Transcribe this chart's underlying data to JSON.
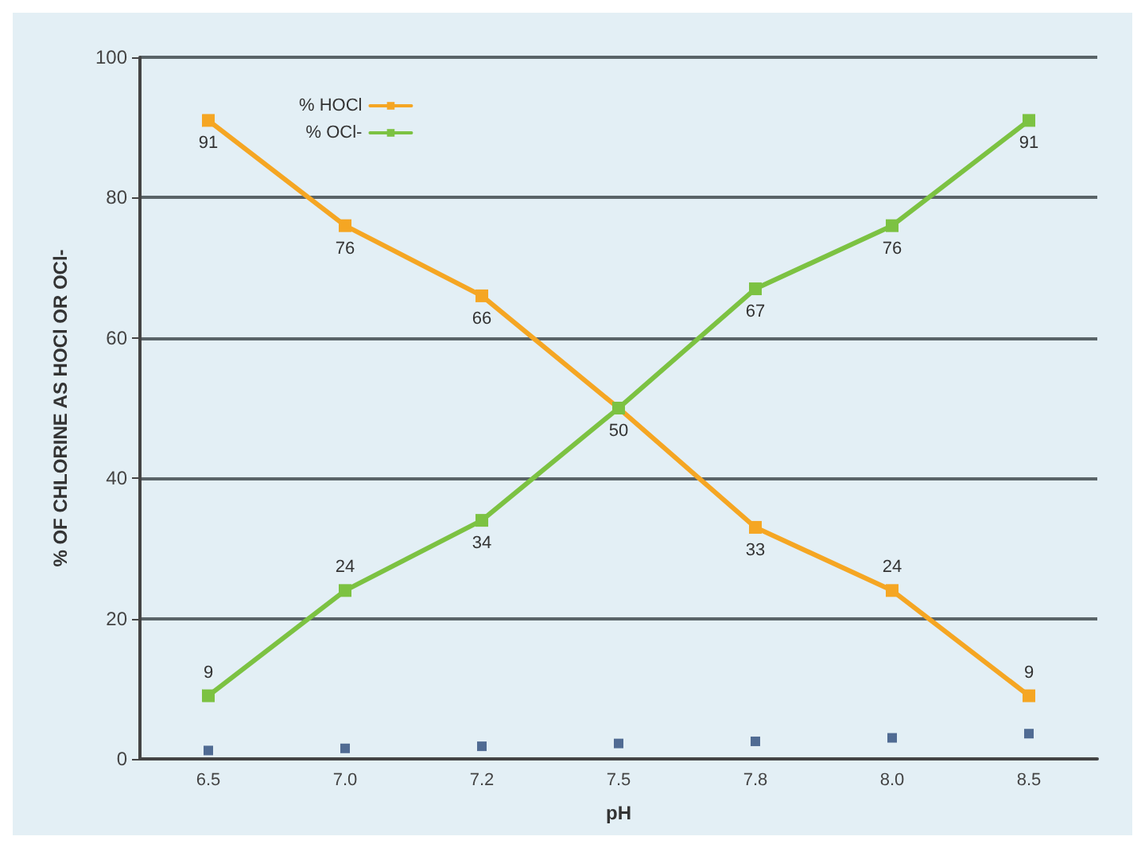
{
  "chart_data": {
    "type": "line",
    "xlabel": "pH",
    "ylabel": "% OF CHLORINE AS HOCl OR OCl-",
    "categories": [
      "6.5",
      "7.0",
      "7.2",
      "7.5",
      "7.8",
      "8.0",
      "8.5"
    ],
    "series": [
      {
        "name": "% HOCl",
        "color": "#f5a623",
        "values": [
          91,
          76,
          66,
          50,
          33,
          24,
          9
        ],
        "value_labels": [
          "91",
          "76",
          "66",
          "50",
          "33",
          "24",
          "9"
        ]
      },
      {
        "name": "% OCl-",
        "color": "#7cc242",
        "values": [
          9,
          24,
          34,
          50,
          67,
          76,
          91
        ],
        "value_labels": [
          "9",
          "24",
          "34",
          null,
          "67",
          "76",
          "91"
        ]
      },
      {
        "type": "scatter",
        "color": "#2a4a7a",
        "x": [
          "6.5",
          "7.0",
          "7.2",
          "7.5",
          "7.8",
          "8.0",
          "8.5"
        ],
        "values": [
          1.2,
          1.5,
          1.8,
          2.2,
          2.5,
          3,
          3.6
        ]
      }
    ],
    "ylim": [
      0,
      100
    ],
    "yticks": [
      0,
      20,
      40,
      60,
      80,
      100
    ],
    "grid": "y",
    "legend": "top left",
    "marker": "square",
    "line_style": "solid"
  }
}
